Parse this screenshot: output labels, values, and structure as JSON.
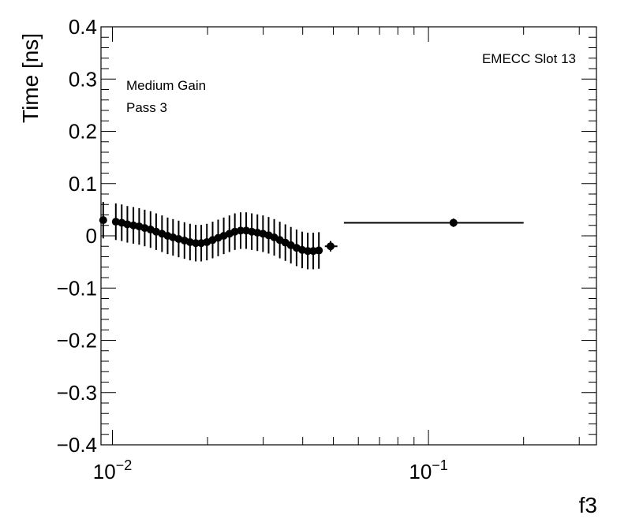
{
  "chart_data": {
    "type": "scatter",
    "xlabel": "f3",
    "ylabel": "Time [ns]",
    "xscale": "log",
    "xlim": [
      0.0092,
      0.34
    ],
    "ylim": [
      -0.4,
      0.4
    ],
    "grid": false,
    "legend": "none",
    "annotations": [
      "EMECC Slot 13",
      "Medium Gain",
      "Pass 3"
    ],
    "y_tick_labels": [
      "0.4",
      "0.3",
      "0.2",
      "0.1",
      "0",
      "−0.1",
      "−0.2",
      "−0.3",
      "−0.4"
    ],
    "y_ticks": [
      0.4,
      0.3,
      0.2,
      0.1,
      0,
      -0.1,
      -0.2,
      -0.3,
      -0.4
    ],
    "x_tick_labels": [
      {
        "base": "10",
        "exp": "−2",
        "value": 0.01
      },
      {
        "base": "10",
        "exp": "−1",
        "value": 0.1
      }
    ],
    "series": [
      {
        "marker": "circle",
        "color": "#000000",
        "points": [
          {
            "x": 0.00935,
            "y": 0.03,
            "yerr": 0.035
          },
          {
            "x": 0.01025,
            "y": 0.027,
            "yerr": 0.035
          },
          {
            "x": 0.0107,
            "y": 0.025,
            "yerr": 0.035
          },
          {
            "x": 0.01115,
            "y": 0.022,
            "yerr": 0.035
          },
          {
            "x": 0.01165,
            "y": 0.02,
            "yerr": 0.035
          },
          {
            "x": 0.01215,
            "y": 0.018,
            "yerr": 0.035
          },
          {
            "x": 0.01265,
            "y": 0.015,
            "yerr": 0.035
          },
          {
            "x": 0.0132,
            "y": 0.012,
            "yerr": 0.035
          },
          {
            "x": 0.01375,
            "y": 0.008,
            "yerr": 0.035
          },
          {
            "x": 0.01435,
            "y": 0.004,
            "yerr": 0.035
          },
          {
            "x": 0.01495,
            "y": 0.0,
            "yerr": 0.035
          },
          {
            "x": 0.01555,
            "y": -0.003,
            "yerr": 0.035
          },
          {
            "x": 0.0162,
            "y": -0.006,
            "yerr": 0.035
          },
          {
            "x": 0.0169,
            "y": -0.009,
            "yerr": 0.035
          },
          {
            "x": 0.0176,
            "y": -0.012,
            "yerr": 0.035
          },
          {
            "x": 0.01835,
            "y": -0.014,
            "yerr": 0.035
          },
          {
            "x": 0.0191,
            "y": -0.014,
            "yerr": 0.035
          },
          {
            "x": 0.0199,
            "y": -0.012,
            "yerr": 0.035
          },
          {
            "x": 0.02075,
            "y": -0.008,
            "yerr": 0.035
          },
          {
            "x": 0.0216,
            "y": -0.004,
            "yerr": 0.035
          },
          {
            "x": 0.0225,
            "y": 0.0,
            "yerr": 0.035
          },
          {
            "x": 0.02345,
            "y": 0.004,
            "yerr": 0.035
          },
          {
            "x": 0.0244,
            "y": 0.008,
            "yerr": 0.035
          },
          {
            "x": 0.02545,
            "y": 0.01,
            "yerr": 0.035
          },
          {
            "x": 0.0265,
            "y": 0.01,
            "yerr": 0.035
          },
          {
            "x": 0.0276,
            "y": 0.008,
            "yerr": 0.035
          },
          {
            "x": 0.02875,
            "y": 0.006,
            "yerr": 0.035
          },
          {
            "x": 0.02995,
            "y": 0.004,
            "yerr": 0.035
          },
          {
            "x": 0.0312,
            "y": 0.001,
            "yerr": 0.035
          },
          {
            "x": 0.0325,
            "y": -0.003,
            "yerr": 0.035
          },
          {
            "x": 0.03385,
            "y": -0.008,
            "yerr": 0.035
          },
          {
            "x": 0.03525,
            "y": -0.013,
            "yerr": 0.035
          },
          {
            "x": 0.0367,
            "y": -0.018,
            "yerr": 0.035
          },
          {
            "x": 0.03825,
            "y": -0.023,
            "yerr": 0.035
          },
          {
            "x": 0.03985,
            "y": -0.027,
            "yerr": 0.035
          },
          {
            "x": 0.0415,
            "y": -0.029,
            "yerr": 0.035
          },
          {
            "x": 0.0432,
            "y": -0.029,
            "yerr": 0.035
          },
          {
            "x": 0.045,
            "y": -0.028,
            "yerr": 0.035
          },
          {
            "x": 0.049,
            "y": -0.02,
            "yerr": 0.01,
            "xerr": [
              0.047,
              0.0515
            ]
          },
          {
            "x": 0.12,
            "y": 0.025,
            "yerr": 0.008,
            "xerr": [
              0.054,
              0.2
            ]
          }
        ]
      }
    ]
  }
}
